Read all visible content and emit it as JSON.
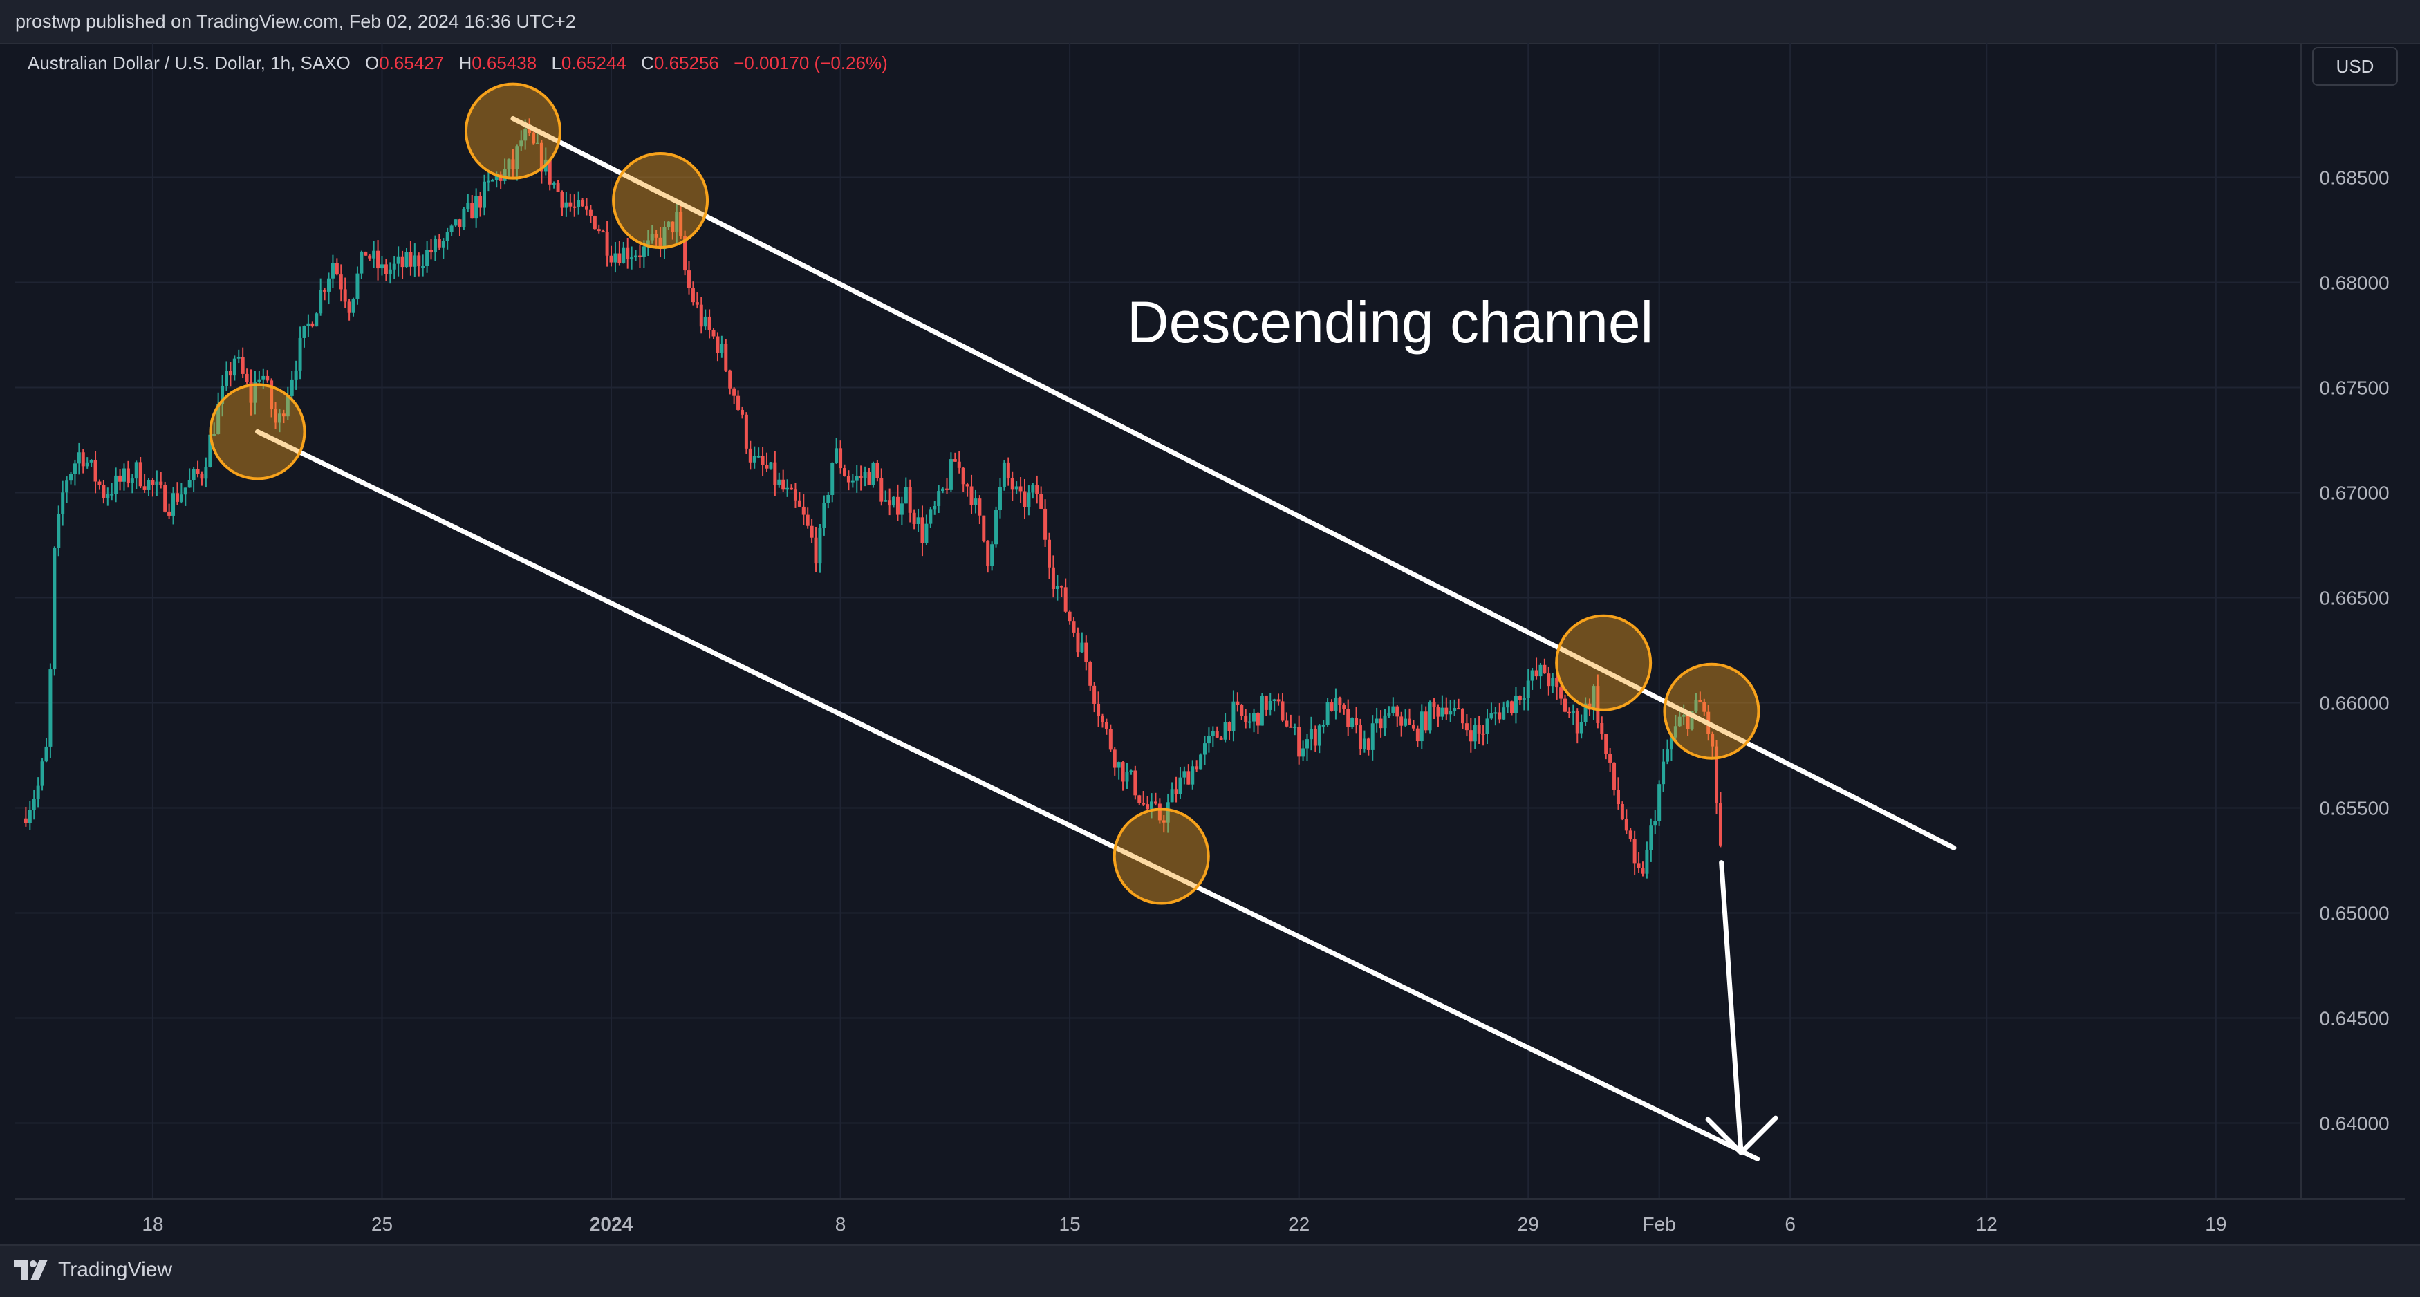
{
  "header": {
    "publisher": "prostwp published on TradingView.com, Feb 02, 2024 16:36 UTC+2"
  },
  "legend": {
    "symbol": "Australian Dollar / U.S. Dollar, 1h, SAXO",
    "o_label": "O",
    "o_value": "0.65427",
    "h_label": "H",
    "h_value": "0.65438",
    "l_label": "L",
    "l_value": "0.65244",
    "c_label": "C",
    "c_value": "0.65256",
    "change": "−0.00170 (−0.26%)"
  },
  "currency_button": "USD",
  "annotation": "Descending channel",
  "footer": {
    "brand": "TradingView"
  },
  "colors": {
    "background": "#131722",
    "up": "#26a69a",
    "down": "#ef5350",
    "lines": "#ffffff",
    "markers": "#f7a21b",
    "grid": "#1f2433",
    "axis_text": "#b2b5be"
  },
  "chart_data": {
    "type": "candlestick",
    "symbol": "Australian Dollar / U.S. Dollar",
    "interval": "1h",
    "x_ticks": [
      "18",
      "25",
      "2024",
      "8",
      "15",
      "22",
      "29",
      "Feb",
      "6",
      "12",
      "19"
    ],
    "x_tick_days": [
      4,
      11,
      18,
      25,
      32,
      39,
      46,
      50,
      54,
      60,
      67
    ],
    "x_unit": "days since Dec 14, 2023",
    "y_ticks": [
      "0.68500",
      "0.68000",
      "0.67500",
      "0.67000",
      "0.66500",
      "0.66000",
      "0.65500",
      "0.65000",
      "0.64500",
      "0.64000"
    ],
    "ylim": [
      0.6364,
      0.6914
    ],
    "xlim": [
      -0.2,
      69.6
    ],
    "price_path": [
      [
        0.0,
        0.6545
      ],
      [
        0.5,
        0.656
      ],
      [
        0.8,
        0.658
      ],
      [
        1.0,
        0.667
      ],
      [
        1.3,
        0.6705
      ],
      [
        1.8,
        0.672
      ],
      [
        2.5,
        0.67
      ],
      [
        3.5,
        0.671
      ],
      [
        4.5,
        0.6695
      ],
      [
        5.5,
        0.671
      ],
      [
        6.0,
        0.674
      ],
      [
        6.5,
        0.6765
      ],
      [
        7.0,
        0.6745
      ],
      [
        7.3,
        0.676
      ],
      [
        7.8,
        0.673
      ],
      [
        8.3,
        0.676
      ],
      [
        9.0,
        0.679
      ],
      [
        9.5,
        0.681
      ],
      [
        10.0,
        0.679
      ],
      [
        10.5,
        0.6815
      ],
      [
        11.0,
        0.6805
      ],
      [
        12.0,
        0.681
      ],
      [
        13.0,
        0.682
      ],
      [
        14.0,
        0.684
      ],
      [
        14.5,
        0.685
      ],
      [
        15.0,
        0.6855
      ],
      [
        15.3,
        0.687
      ],
      [
        15.8,
        0.686
      ],
      [
        16.3,
        0.6845
      ],
      [
        16.8,
        0.6835
      ],
      [
        17.5,
        0.683
      ],
      [
        18.0,
        0.6815
      ],
      [
        19.0,
        0.6815
      ],
      [
        19.5,
        0.682
      ],
      [
        20.0,
        0.683
      ],
      [
        20.3,
        0.68
      ],
      [
        20.8,
        0.678
      ],
      [
        21.3,
        0.677
      ],
      [
        21.8,
        0.6745
      ],
      [
        22.3,
        0.6715
      ],
      [
        22.8,
        0.671
      ],
      [
        23.3,
        0.67
      ],
      [
        23.8,
        0.669
      ],
      [
        24.3,
        0.667
      ],
      [
        24.8,
        0.672
      ],
      [
        25.3,
        0.6705
      ],
      [
        26.0,
        0.671
      ],
      [
        26.5,
        0.669
      ],
      [
        27.0,
        0.67
      ],
      [
        27.5,
        0.668
      ],
      [
        28.0,
        0.6695
      ],
      [
        28.5,
        0.6715
      ],
      [
        29.0,
        0.67
      ],
      [
        29.5,
        0.667
      ],
      [
        30.0,
        0.671
      ],
      [
        30.5,
        0.6695
      ],
      [
        31.0,
        0.67
      ],
      [
        31.5,
        0.666
      ],
      [
        32.0,
        0.664
      ],
      [
        32.5,
        0.662
      ],
      [
        33.0,
        0.659
      ],
      [
        33.5,
        0.657
      ],
      [
        34.0,
        0.656
      ],
      [
        34.3,
        0.655
      ],
      [
        34.8,
        0.6545
      ],
      [
        35.3,
        0.656
      ],
      [
        36.0,
        0.6575
      ],
      [
        36.5,
        0.6585
      ],
      [
        37.0,
        0.6595
      ],
      [
        37.5,
        0.659
      ],
      [
        38.0,
        0.66
      ],
      [
        38.5,
        0.6595
      ],
      [
        39.0,
        0.658
      ],
      [
        39.5,
        0.6585
      ],
      [
        40.0,
        0.66
      ],
      [
        40.5,
        0.659
      ],
      [
        41.0,
        0.658
      ],
      [
        41.5,
        0.659
      ],
      [
        42.0,
        0.6595
      ],
      [
        42.5,
        0.6585
      ],
      [
        43.0,
        0.6595
      ],
      [
        43.5,
        0.66
      ],
      [
        44.0,
        0.659
      ],
      [
        44.5,
        0.6585
      ],
      [
        45.0,
        0.6595
      ],
      [
        45.5,
        0.66
      ],
      [
        46.0,
        0.661
      ],
      [
        46.5,
        0.6615
      ],
      [
        47.0,
        0.66
      ],
      [
        47.5,
        0.659
      ],
      [
        48.0,
        0.6605
      ],
      [
        48.3,
        0.658
      ],
      [
        48.6,
        0.656
      ],
      [
        49.0,
        0.654
      ],
      [
        49.3,
        0.6515
      ],
      [
        49.6,
        0.6525
      ],
      [
        50.0,
        0.656
      ],
      [
        50.3,
        0.658
      ],
      [
        50.6,
        0.659
      ],
      [
        51.0,
        0.6595
      ],
      [
        51.3,
        0.66
      ],
      [
        51.6,
        0.658
      ],
      [
        51.9,
        0.6526
      ]
    ],
    "channel_upper": {
      "from": [
        15.0,
        0.6878
      ],
      "to": [
        59.0,
        0.6531
      ]
    },
    "channel_lower": {
      "from": [
        7.2,
        0.6729
      ],
      "to": [
        53.0,
        0.6383
      ]
    },
    "touch_points": [
      [
        7.2,
        0.6729
      ],
      [
        15.0,
        0.6872
      ],
      [
        19.5,
        0.6839
      ],
      [
        34.8,
        0.6527
      ],
      [
        48.3,
        0.6619
      ],
      [
        51.6,
        0.6596
      ]
    ],
    "arrow": {
      "from": [
        51.9,
        0.6524
      ],
      "to": [
        52.5,
        0.6386
      ]
    },
    "grid": true
  }
}
